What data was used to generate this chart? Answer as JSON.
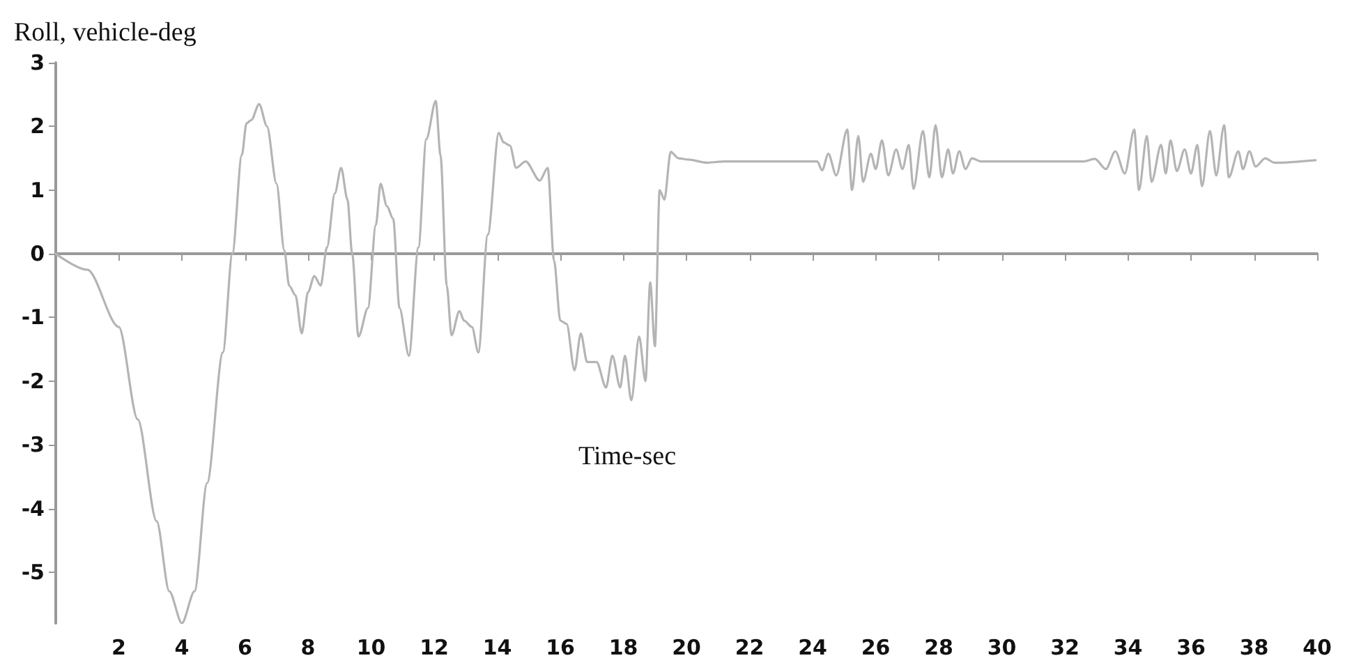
{
  "chart_data": {
    "type": "line",
    "ylabel": "Roll, vehicle-deg",
    "annotations": [
      "Time-sec"
    ],
    "xlim": [
      0,
      40
    ],
    "xticks": [
      2,
      4,
      6,
      8,
      10,
      12,
      14,
      16,
      18,
      20,
      22,
      24,
      26,
      28,
      30,
      32,
      34,
      36,
      38,
      40
    ],
    "ylim": [
      -5.8,
      3
    ],
    "yticks": [
      -5,
      -4,
      -3,
      -2,
      -1,
      0,
      1,
      2,
      3
    ],
    "marker": "none",
    "line_style": "solid",
    "series": [
      {
        "color": "#b4b4b4",
        "x": [
          0,
          1.0,
          2.0,
          2.6,
          3.2,
          3.6,
          4.0,
          4.4,
          4.8,
          5.3,
          5.6,
          5.9,
          6.05,
          6.2,
          6.45,
          6.7,
          7.0,
          7.25,
          7.4,
          7.6,
          7.8,
          8.0,
          8.2,
          8.4,
          8.6,
          8.85,
          9.05,
          9.25,
          9.4,
          9.6,
          9.9,
          10.15,
          10.3,
          10.5,
          10.7,
          10.9,
          11.2,
          11.5,
          11.75,
          12.05,
          12.2,
          12.4,
          12.55,
          12.8,
          12.95,
          13.2,
          13.4,
          13.7,
          14.05,
          14.2,
          14.4,
          14.6,
          14.9,
          15.35,
          15.6,
          15.8,
          16.0,
          16.2,
          16.45,
          16.65,
          16.85,
          17.15,
          17.45,
          17.65,
          17.9,
          18.05,
          18.25,
          18.5,
          18.7,
          18.85,
          19.0,
          19.15,
          19.3,
          19.5,
          19.75,
          20.05,
          20.65,
          21.2,
          22.5,
          24.15,
          24.3,
          24.5,
          24.75,
          25.1,
          25.25,
          25.45,
          25.6,
          25.85,
          26.0,
          26.2,
          26.4,
          26.65,
          26.85,
          27.05,
          27.2,
          27.5,
          27.7,
          27.9,
          28.1,
          28.3,
          28.45,
          28.65,
          28.85,
          29.05,
          29.35,
          32.6,
          32.95,
          33.3,
          33.6,
          33.9,
          34.2,
          34.35,
          34.6,
          34.75,
          35.05,
          35.2,
          35.35,
          35.55,
          35.8,
          36.0,
          36.2,
          36.35,
          36.6,
          36.8,
          37.05,
          37.2,
          37.5,
          37.65,
          37.85,
          38.05,
          38.35,
          38.65,
          39.95
        ],
        "values": [
          0,
          -0.25,
          -1.15,
          -2.6,
          -4.2,
          -5.3,
          -5.8,
          -5.3,
          -3.6,
          -1.55,
          0,
          1.55,
          2.05,
          2.1,
          2.35,
          2.0,
          1.1,
          0.05,
          -0.5,
          -0.65,
          -1.25,
          -0.6,
          -0.35,
          -0.5,
          0.1,
          0.95,
          1.35,
          0.85,
          0.0,
          -1.3,
          -0.85,
          0.45,
          1.1,
          0.75,
          0.55,
          -0.85,
          -1.6,
          0.1,
          1.8,
          2.4,
          1.55,
          -0.5,
          -1.28,
          -0.9,
          -1.05,
          -1.15,
          -1.55,
          0.3,
          1.9,
          1.75,
          1.7,
          1.35,
          1.45,
          1.15,
          1.35,
          -0.1,
          -1.05,
          -1.1,
          -1.83,
          -1.25,
          -1.7,
          -1.7,
          -2.1,
          -1.6,
          -2.1,
          -1.6,
          -2.3,
          -1.3,
          -2.0,
          -0.45,
          -1.45,
          1.0,
          0.85,
          1.6,
          1.5,
          1.48,
          1.43,
          1.45,
          1.45,
          1.45,
          1.31,
          1.57,
          1.23,
          1.95,
          1.0,
          1.85,
          1.13,
          1.57,
          1.33,
          1.78,
          1.23,
          1.64,
          1.33,
          1.71,
          1.02,
          1.93,
          1.2,
          2.02,
          1.2,
          1.64,
          1.26,
          1.61,
          1.33,
          1.5,
          1.45,
          1.45,
          1.49,
          1.33,
          1.61,
          1.26,
          1.95,
          1.0,
          1.85,
          1.13,
          1.71,
          1.26,
          1.78,
          1.3,
          1.64,
          1.26,
          1.71,
          1.06,
          1.93,
          1.23,
          2.02,
          1.2,
          1.61,
          1.33,
          1.61,
          1.37,
          1.5,
          1.43,
          1.47
        ]
      }
    ]
  }
}
